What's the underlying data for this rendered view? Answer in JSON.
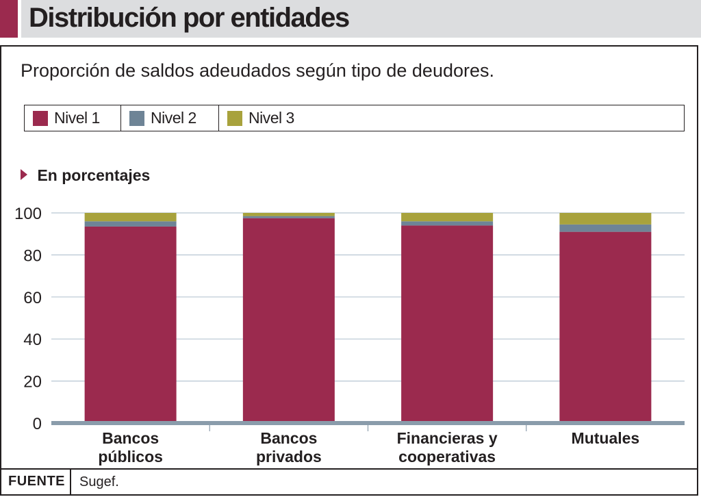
{
  "title": "Distribución por entidades",
  "subtitle": "Proporción de saldos adeudados según tipo de deudores.",
  "unit_label": "En porcentajes",
  "source": {
    "label": "FUENTE",
    "text": "Sugef."
  },
  "colors": {
    "accent": "#9b2a4e",
    "nivel1": "#9b2a4e",
    "nivel2": "#6e8496",
    "nivel3": "#a8a23c",
    "grid": "#b7c6d2",
    "axis": "#8a9cab"
  },
  "chart_data": {
    "type": "bar",
    "stacked": true,
    "categories": [
      [
        "Bancos",
        "públicos"
      ],
      [
        "Bancos",
        "privados"
      ],
      [
        "Financieras y",
        "cooperativas"
      ],
      [
        "Mutuales"
      ]
    ],
    "series": [
      {
        "name": "Nivel 1",
        "color": "#9b2a4e",
        "values": [
          93.5,
          97.5,
          94,
          91
        ]
      },
      {
        "name": "Nivel 2",
        "color": "#6e8496",
        "values": [
          2.5,
          1,
          2,
          3.5
        ]
      },
      {
        "name": "Nivel 3",
        "color": "#a8a23c",
        "values": [
          4,
          1.5,
          4,
          5.5
        ]
      }
    ],
    "ylim": [
      0,
      100
    ],
    "yticks": [
      0,
      20,
      40,
      60,
      80,
      100
    ],
    "grid": true,
    "legend": "top"
  }
}
